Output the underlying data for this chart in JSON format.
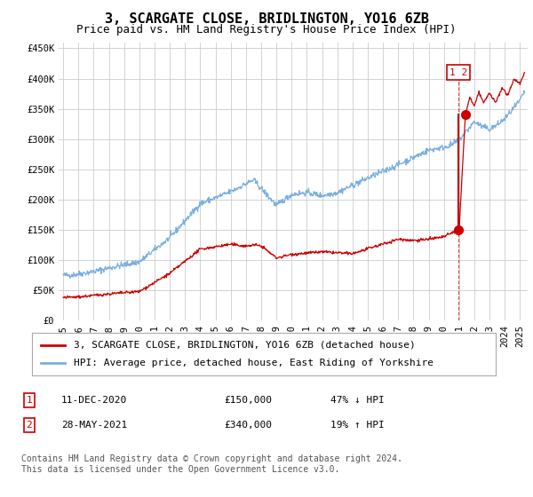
{
  "title": "3, SCARGATE CLOSE, BRIDLINGTON, YO16 6ZB",
  "subtitle": "Price paid vs. HM Land Registry's House Price Index (HPI)",
  "ylabel_ticks": [
    "£0",
    "£50K",
    "£100K",
    "£150K",
    "£200K",
    "£250K",
    "£300K",
    "£350K",
    "£400K",
    "£450K"
  ],
  "ytick_values": [
    0,
    50000,
    100000,
    150000,
    200000,
    250000,
    300000,
    350000,
    400000,
    450000
  ],
  "ylim": [
    0,
    460000
  ],
  "xlim_start": 1994.7,
  "xlim_end": 2025.5,
  "hpi_color": "#7ab0e0",
  "price_color": "#cc0000",
  "annotation_color": "#cc0000",
  "grid_color": "#cccccc",
  "bg_color": "#ffffff",
  "transaction1_date": "11-DEC-2020",
  "transaction1_price": 150000,
  "transaction1_pct": "47% ↓ HPI",
  "transaction2_date": "28-MAY-2021",
  "transaction2_price": 340000,
  "transaction2_pct": "19% ↑ HPI",
  "transaction1_x": 2020.95,
  "transaction2_x": 2021.41,
  "transaction1_y": 150000,
  "transaction2_y": 340000,
  "legend_label1": "3, SCARGATE CLOSE, BRIDLINGTON, YO16 6ZB (detached house)",
  "legend_label2": "HPI: Average price, detached house, East Riding of Yorkshire",
  "footer": "Contains HM Land Registry data © Crown copyright and database right 2024.\nThis data is licensed under the Open Government Licence v3.0.",
  "title_fontsize": 11,
  "subtitle_fontsize": 9,
  "tick_fontsize": 7.5,
  "legend_fontsize": 8,
  "footer_fontsize": 7
}
